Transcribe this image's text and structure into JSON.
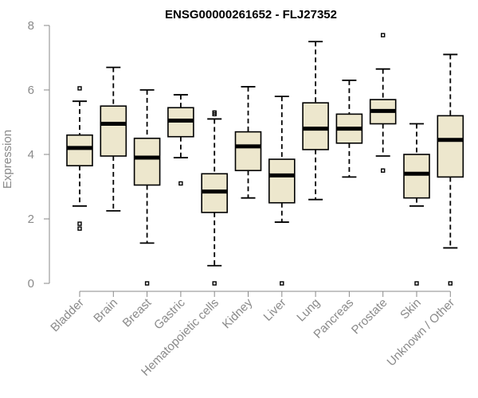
{
  "chart_data": {
    "type": "boxplot",
    "title": "ENSG00000261652 - FLJ27352",
    "xlabel": "",
    "ylabel": "Expression",
    "ylim": [
      0,
      8
    ],
    "yticks": [
      "0",
      "2",
      "4",
      "6",
      "8"
    ],
    "box_fill": "#ede7cd",
    "line_color": "#000000",
    "axis_color": "#8a8a8a",
    "categories": [
      "Bladder",
      "Brain",
      "Breast",
      "Gastric",
      "Hematopoietic cells",
      "Kidney",
      "Liver",
      "Lung",
      "Pancreas",
      "Prostate",
      "Skin",
      "Unknown / Other"
    ],
    "boxes": [
      {
        "min": 2.4,
        "q1": 3.65,
        "median": 4.2,
        "q3": 4.6,
        "max": 5.65,
        "outliers": [
          6.05,
          1.85,
          1.7
        ]
      },
      {
        "min": 2.25,
        "q1": 3.95,
        "median": 4.95,
        "q3": 5.5,
        "max": 6.7,
        "outliers": []
      },
      {
        "min": 1.25,
        "q1": 3.05,
        "median": 3.9,
        "q3": 4.5,
        "max": 6.0,
        "outliers": [
          0.0
        ]
      },
      {
        "min": 3.9,
        "q1": 4.55,
        "median": 5.05,
        "q3": 5.45,
        "max": 5.85,
        "outliers": [
          3.1
        ]
      },
      {
        "min": 0.55,
        "q1": 2.2,
        "median": 2.85,
        "q3": 3.4,
        "max": 5.1,
        "outliers": [
          5.25,
          5.3,
          0.0
        ]
      },
      {
        "min": 2.65,
        "q1": 3.5,
        "median": 4.25,
        "q3": 4.7,
        "max": 6.1,
        "outliers": []
      },
      {
        "min": 1.9,
        "q1": 2.5,
        "median": 3.35,
        "q3": 3.85,
        "max": 5.8,
        "outliers": [
          0.0
        ]
      },
      {
        "min": 2.6,
        "q1": 4.15,
        "median": 4.8,
        "q3": 5.6,
        "max": 7.5,
        "outliers": []
      },
      {
        "min": 3.3,
        "q1": 4.35,
        "median": 4.8,
        "q3": 5.25,
        "max": 6.3,
        "outliers": []
      },
      {
        "min": 3.95,
        "q1": 4.95,
        "median": 5.35,
        "q3": 5.7,
        "max": 6.65,
        "outliers": [
          7.7,
          3.5
        ]
      },
      {
        "min": 2.4,
        "q1": 2.65,
        "median": 3.4,
        "q3": 4.0,
        "max": 4.95,
        "outliers": [
          0.0
        ]
      },
      {
        "min": 1.1,
        "q1": 3.3,
        "median": 4.45,
        "q3": 5.2,
        "max": 7.1,
        "outliers": [
          0.0
        ]
      }
    ]
  }
}
